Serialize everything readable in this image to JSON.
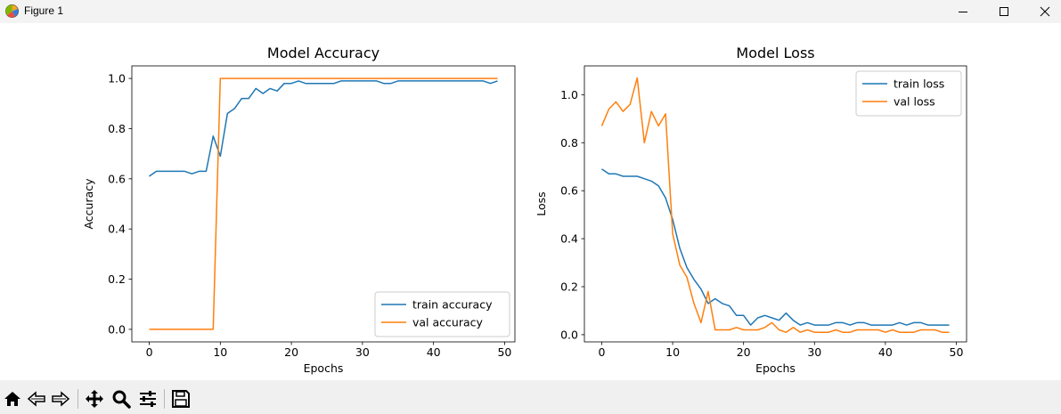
{
  "window": {
    "title": "Figure 1"
  },
  "toolbar": {
    "buttons": [
      "home-icon",
      "back-arrow-icon",
      "forward-arrow-icon",
      "pan-icon",
      "zoom-icon",
      "configure-subplots-icon",
      "save-icon"
    ]
  },
  "colors": {
    "train": "#1f77b4",
    "val": "#ff7f0e"
  },
  "chart_data": [
    {
      "type": "line",
      "title": "Model Accuracy",
      "xlabel": "Epochs",
      "ylabel": "Accuracy",
      "xlim": [
        -2.45,
        51.45
      ],
      "ylim": [
        -0.05,
        1.05
      ],
      "xticks": [
        0,
        10,
        20,
        30,
        40,
        50
      ],
      "yticks": [
        0.0,
        0.2,
        0.4,
        0.6,
        0.8,
        1.0
      ],
      "xtick_labels": [
        "0",
        "10",
        "20",
        "30",
        "40",
        "50"
      ],
      "ytick_labels": [
        "0.0",
        "0.2",
        "0.4",
        "0.6",
        "0.8",
        "1.0"
      ],
      "legend_loc": "lower right",
      "grid": false,
      "x": [
        0,
        1,
        2,
        3,
        4,
        5,
        6,
        7,
        8,
        9,
        10,
        11,
        12,
        13,
        14,
        15,
        16,
        17,
        18,
        19,
        20,
        21,
        22,
        23,
        24,
        25,
        26,
        27,
        28,
        29,
        30,
        31,
        32,
        33,
        34,
        35,
        36,
        37,
        38,
        39,
        40,
        41,
        42,
        43,
        44,
        45,
        46,
        47,
        48,
        49
      ],
      "series": [
        {
          "name": "train accuracy",
          "color": "#1f77b4",
          "values": [
            0.61,
            0.63,
            0.63,
            0.63,
            0.63,
            0.63,
            0.62,
            0.63,
            0.63,
            0.77,
            0.69,
            0.86,
            0.88,
            0.92,
            0.92,
            0.96,
            0.94,
            0.96,
            0.95,
            0.98,
            0.98,
            0.99,
            0.98,
            0.98,
            0.98,
            0.98,
            0.98,
            0.99,
            0.99,
            0.99,
            0.99,
            0.99,
            0.99,
            0.98,
            0.98,
            0.99,
            0.99,
            0.99,
            0.99,
            0.99,
            0.99,
            0.99,
            0.99,
            0.99,
            0.99,
            0.99,
            0.99,
            0.99,
            0.98,
            0.99
          ]
        },
        {
          "name": "val accuracy",
          "color": "#ff7f0e",
          "values": [
            0,
            0,
            0,
            0,
            0,
            0,
            0,
            0,
            0,
            0,
            1,
            1,
            1,
            1,
            1,
            1,
            1,
            1,
            1,
            1,
            1,
            1,
            1,
            1,
            1,
            1,
            1,
            1,
            1,
            1,
            1,
            1,
            1,
            1,
            1,
            1,
            1,
            1,
            1,
            1,
            1,
            1,
            1,
            1,
            1,
            1,
            1,
            1,
            1,
            1
          ]
        }
      ]
    },
    {
      "type": "line",
      "title": "Model Loss",
      "xlabel": "Epochs",
      "ylabel": "Loss",
      "xlim": [
        -2.45,
        51.45
      ],
      "ylim": [
        -0.03,
        1.12
      ],
      "xticks": [
        0,
        10,
        20,
        30,
        40,
        50
      ],
      "yticks": [
        0.0,
        0.2,
        0.4,
        0.6,
        0.8,
        1.0
      ],
      "xtick_labels": [
        "0",
        "10",
        "20",
        "30",
        "40",
        "50"
      ],
      "ytick_labels": [
        "0.0",
        "0.2",
        "0.4",
        "0.6",
        "0.8",
        "1.0"
      ],
      "legend_loc": "upper right",
      "grid": false,
      "x": [
        0,
        1,
        2,
        3,
        4,
        5,
        6,
        7,
        8,
        9,
        10,
        11,
        12,
        13,
        14,
        15,
        16,
        17,
        18,
        19,
        20,
        21,
        22,
        23,
        24,
        25,
        26,
        27,
        28,
        29,
        30,
        31,
        32,
        33,
        34,
        35,
        36,
        37,
        38,
        39,
        40,
        41,
        42,
        43,
        44,
        45,
        46,
        47,
        48,
        49
      ],
      "series": [
        {
          "name": "train loss",
          "color": "#1f77b4",
          "values": [
            0.69,
            0.67,
            0.67,
            0.66,
            0.66,
            0.66,
            0.65,
            0.64,
            0.62,
            0.57,
            0.48,
            0.36,
            0.28,
            0.23,
            0.19,
            0.13,
            0.15,
            0.13,
            0.12,
            0.08,
            0.08,
            0.04,
            0.07,
            0.08,
            0.07,
            0.06,
            0.09,
            0.06,
            0.04,
            0.05,
            0.04,
            0.04,
            0.04,
            0.05,
            0.05,
            0.04,
            0.05,
            0.05,
            0.04,
            0.04,
            0.04,
            0.04,
            0.05,
            0.04,
            0.05,
            0.05,
            0.04,
            0.04,
            0.04,
            0.04
          ]
        },
        {
          "name": "val loss",
          "color": "#ff7f0e",
          "values": [
            0.87,
            0.94,
            0.97,
            0.93,
            0.96,
            1.07,
            0.8,
            0.93,
            0.87,
            0.92,
            0.42,
            0.29,
            0.24,
            0.13,
            0.05,
            0.18,
            0.02,
            0.02,
            0.02,
            0.03,
            0.02,
            0.02,
            0.02,
            0.03,
            0.05,
            0.02,
            0.01,
            0.03,
            0.01,
            0.02,
            0.01,
            0.01,
            0.01,
            0.02,
            0.01,
            0.01,
            0.02,
            0.02,
            0.02,
            0.02,
            0.01,
            0.02,
            0.01,
            0.01,
            0.01,
            0.02,
            0.02,
            0.02,
            0.01,
            0.01
          ]
        }
      ]
    }
  ]
}
